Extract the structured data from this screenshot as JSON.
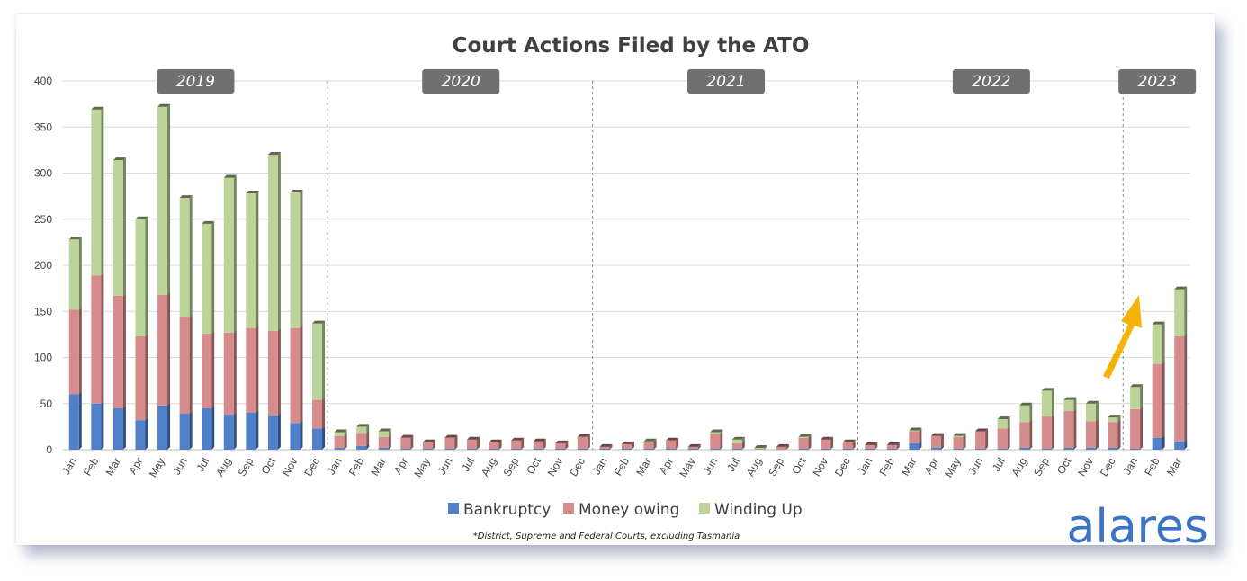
{
  "chart_data": {
    "type": "bar",
    "stacked": true,
    "title": "Court Actions Filed by the ATO",
    "footnote": "*District, Supreme and Federal Courts, excluding Tasmania",
    "brand": "alares",
    "ylim": [
      0,
      400
    ],
    "yticks": [
      0,
      50,
      100,
      150,
      200,
      250,
      300,
      350,
      400
    ],
    "grid": true,
    "legend_position": "bottom",
    "categories": [
      "Jan",
      "Feb",
      "Mar",
      "Apr",
      "May",
      "Jun",
      "Jul",
      "Aug",
      "Sep",
      "Oct",
      "Nov",
      "Dec",
      "Jan",
      "Feb",
      "Mar",
      "Apr",
      "May",
      "Jun",
      "Jul",
      "Aug",
      "Sep",
      "Oct",
      "Nov",
      "Dec",
      "Jan",
      "Feb",
      "Mar",
      "Apr",
      "May",
      "Jun",
      "Jul",
      "Aug",
      "Sep",
      "Oct",
      "Nov",
      "Dec",
      "Jan",
      "Feb",
      "Mar",
      "Apr",
      "May",
      "Jun",
      "Jul",
      "Aug",
      "Sep",
      "Oct",
      "Nov",
      "Dec",
      "Jan",
      "Feb",
      "Mar"
    ],
    "year_groups": [
      {
        "label": "2019",
        "start": 0,
        "count": 12
      },
      {
        "label": "2020",
        "start": 12,
        "count": 12
      },
      {
        "label": "2021",
        "start": 24,
        "count": 12
      },
      {
        "label": "2022",
        "start": 36,
        "count": 12
      },
      {
        "label": "2023",
        "start": 48,
        "count": 3
      }
    ],
    "series": [
      {
        "name": "Bankruptcy",
        "color": "#4f80c9",
        "values": [
          60,
          50,
          45,
          32,
          48,
          39,
          45,
          38,
          40,
          37,
          29,
          23,
          2,
          4,
          2,
          1,
          1,
          1,
          1,
          1,
          1,
          1,
          1,
          1,
          1,
          1,
          1,
          1,
          1,
          1,
          1,
          0,
          0,
          1,
          1,
          1,
          1,
          1,
          7,
          2,
          1,
          1,
          1,
          2,
          1,
          2,
          2,
          2,
          1,
          13,
          9
        ]
      },
      {
        "name": "Money owing",
        "color": "#d68c8c",
        "values": [
          92,
          139,
          122,
          91,
          120,
          105,
          81,
          89,
          92,
          92,
          103,
          31,
          13,
          14,
          12,
          12,
          7,
          12,
          10,
          7,
          9,
          8,
          6,
          13,
          2,
          5,
          7,
          9,
          2,
          16,
          6,
          1,
          3,
          12,
          10,
          7,
          4,
          4,
          13,
          13,
          13,
          19,
          22,
          28,
          35,
          40,
          29,
          28,
          43,
          80,
          114
        ]
      },
      {
        "name": "Winding Up",
        "color": "#bcd49a",
        "values": [
          76,
          180,
          147,
          127,
          204,
          129,
          119,
          168,
          146,
          191,
          147,
          83,
          4,
          7,
          6,
          0,
          0,
          0,
          0,
          0,
          0,
          0,
          0,
          0,
          0,
          0,
          1,
          0,
          0,
          2,
          4,
          1,
          0,
          1,
          0,
          0,
          0,
          0,
          1,
          0,
          1,
          0,
          10,
          18,
          28,
          12,
          19,
          5,
          24,
          43,
          51
        ]
      }
    ]
  }
}
